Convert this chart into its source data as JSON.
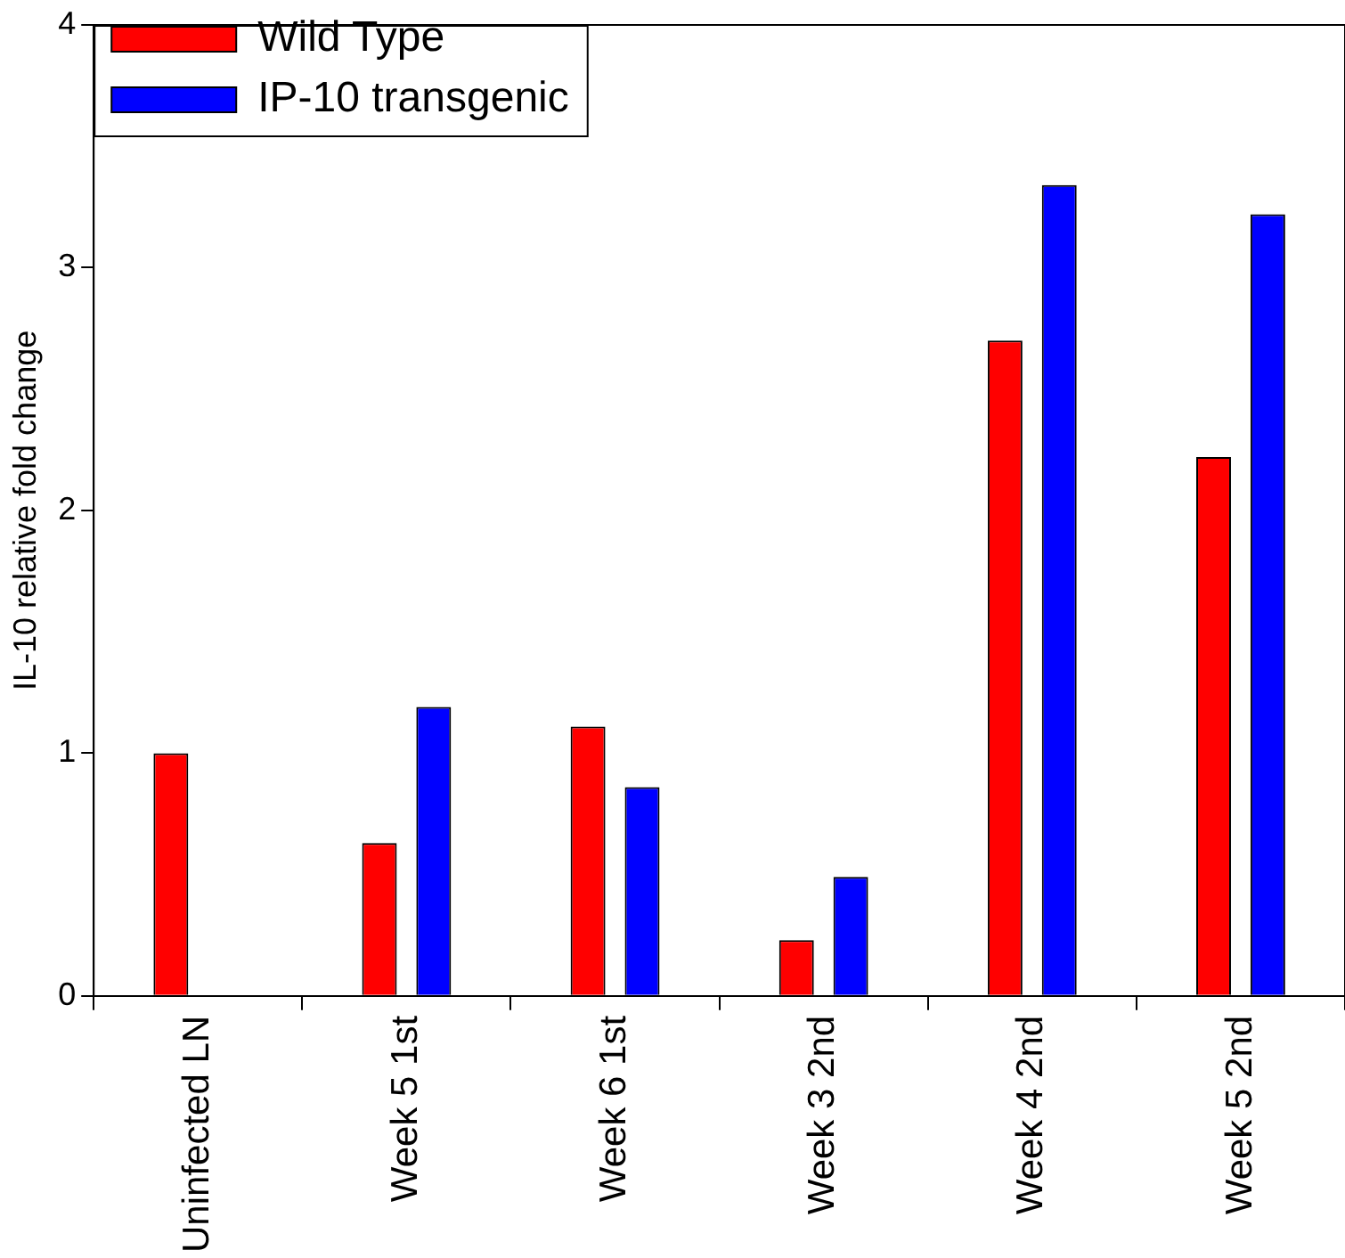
{
  "chart_data": {
    "type": "bar",
    "ylabel": "IL-10 relative fold change",
    "categories": [
      "Uninfected LN",
      "Week 5 1st",
      "Week 6 1st",
      "Week 3 2nd",
      "Week 4 2nd",
      "Week 5 2nd"
    ],
    "series": [
      {
        "name": "Wild Type",
        "color": "#ff0000",
        "values": [
          1.0,
          0.63,
          1.11,
          0.23,
          2.7,
          2.22
        ]
      },
      {
        "name": "IP-10 transgenic",
        "color": "#0000ff",
        "values": [
          null,
          1.19,
          0.86,
          0.49,
          3.34,
          3.22
        ]
      }
    ],
    "ylim": [
      0,
      4
    ],
    "yticks": [
      0,
      1,
      2,
      3,
      4
    ],
    "grid": false,
    "legend": "top left"
  }
}
